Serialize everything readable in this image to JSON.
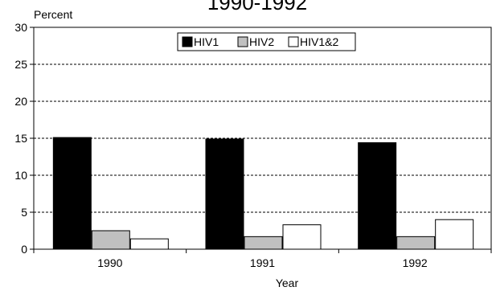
{
  "chart_data": {
    "type": "bar",
    "title": "1990-1992",
    "ylabel": "Percent",
    "xlabel": "Year",
    "categories": [
      "1990",
      "1991",
      "1992"
    ],
    "series": [
      {
        "name": "HIV1",
        "values": [
          15.1,
          14.9,
          14.4
        ],
        "color": "#000000"
      },
      {
        "name": "HIV2",
        "values": [
          2.5,
          1.7,
          1.7
        ],
        "color": "#c0c0c0"
      },
      {
        "name": "HIV1&2",
        "values": [
          1.4,
          3.3,
          4.0
        ],
        "color": "#ffffff"
      }
    ],
    "ylim": [
      0,
      30
    ],
    "yticks": [
      0,
      5,
      10,
      15,
      20,
      25,
      30
    ],
    "grid": true,
    "legend_position": "top-center"
  }
}
